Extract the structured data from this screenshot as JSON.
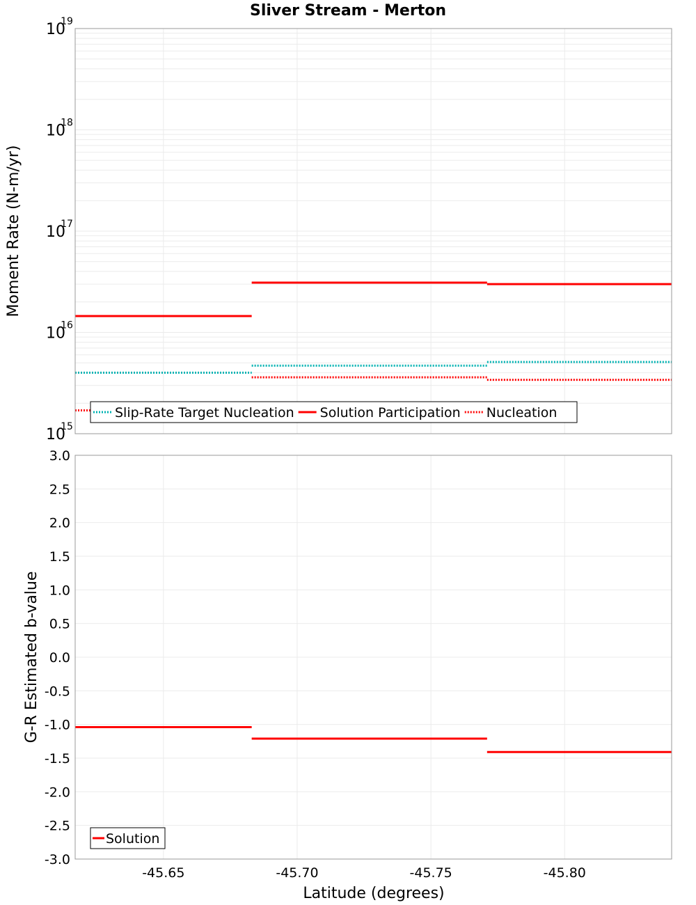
{
  "title": "Sliver Stream - Merton",
  "chart_data": [
    {
      "type": "line",
      "ylabel": "Moment Rate (N-m/yr)",
      "yscale": "log",
      "ylim": [
        1000000000000000.0,
        1e+19
      ],
      "y_ticks": [
        {
          "base": "10",
          "exp": "19"
        },
        {
          "base": "10",
          "exp": "18"
        },
        {
          "base": "10",
          "exp": "17"
        },
        {
          "base": "10",
          "exp": "16"
        },
        {
          "base": "10",
          "exp": "15"
        }
      ],
      "xlim": [
        -45.617,
        -45.84
      ],
      "grid": true,
      "legend_position": "bottom-left",
      "series": [
        {
          "name": "Slip-Rate Target Nucleation",
          "color": "#00b2b2",
          "style": "dotted",
          "segments": [
            {
              "x": [
                -45.617,
                -45.683
              ],
              "y": 4000000000000000.0
            },
            {
              "x": [
                -45.683,
                -45.771
              ],
              "y": 4700000000000000.0
            },
            {
              "x": [
                -45.771,
                -45.84
              ],
              "y": 5100000000000000.0
            }
          ]
        },
        {
          "name": "Solution Participation",
          "color": "#ff0000",
          "style": "solid",
          "segments": [
            {
              "x": [
                -45.617,
                -45.683
              ],
              "y": 1.45e+16
            },
            {
              "x": [
                -45.683,
                -45.771
              ],
              "y": 3.1e+16
            },
            {
              "x": [
                -45.771,
                -45.84
              ],
              "y": 3e+16
            }
          ]
        },
        {
          "name": "Nucleation",
          "color": "#ff0000",
          "style": "dotted",
          "segments": [
            {
              "x": [
                -45.617,
                -45.683
              ],
              "y": 1700000000000000.0
            },
            {
              "x": [
                -45.683,
                -45.771
              ],
              "y": 3600000000000000.0
            },
            {
              "x": [
                -45.771,
                -45.84
              ],
              "y": 3400000000000000.0
            }
          ]
        }
      ]
    },
    {
      "type": "line",
      "ylabel": "G-R Estimated b-value",
      "xlabel": "Latitude (degrees)",
      "ylim": [
        -3.0,
        3.0
      ],
      "y_ticks": [
        "3.0",
        "2.5",
        "2.0",
        "1.5",
        "1.0",
        "0.5",
        "0.0",
        "-0.5",
        "-1.0",
        "-1.5",
        "-2.0",
        "-2.5",
        "-3.0"
      ],
      "x_ticks": [
        "-45.65",
        "-45.70",
        "-45.75",
        "-45.80"
      ],
      "xlim": [
        -45.617,
        -45.84
      ],
      "grid": true,
      "legend_position": "bottom-left",
      "series": [
        {
          "name": "Solution",
          "color": "#ff0000",
          "style": "solid",
          "segments": [
            {
              "x": [
                -45.617,
                -45.683
              ],
              "y": -1.04
            },
            {
              "x": [
                -45.683,
                -45.771
              ],
              "y": -1.21
            },
            {
              "x": [
                -45.771,
                -45.84
              ],
              "y": -1.41
            }
          ]
        }
      ]
    }
  ]
}
